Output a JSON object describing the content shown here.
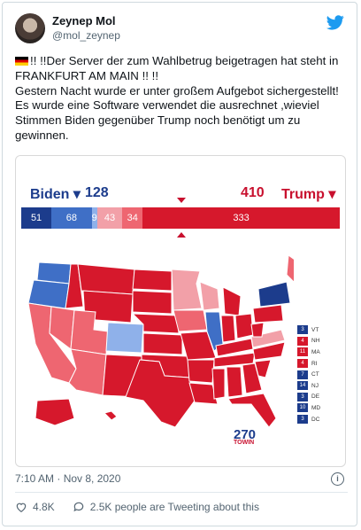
{
  "tweet": {
    "display_name": "Zeynep Mol",
    "handle": "@mol_zeynep",
    "line1": "!! !!Der Server der zum Wahlbetrug beigetragen hat steht in FRANKFURT AM MAIN !! !!",
    "line2": "Gestern Nacht wurde er unter großem Aufgebot sichergestellt! Es wurde eine Software verwendet die ausrechnet ,wieviel Stimmen Biden gegenüber Trump noch benötigt um zu gewinnen.",
    "timestamp": "7:10 AM · Nov 8, 2020",
    "likes": "4.8K",
    "tweeting_about": "2.5K people are Tweeting about this"
  },
  "map_card": {
    "biden_label": "Biden ▾",
    "biden_total": "128",
    "trump_total": "410",
    "trump_label": "Trump ▾",
    "bar_segments": [
      {
        "label": "51",
        "value": 51,
        "color": "#1c3c8c"
      },
      {
        "label": "68",
        "value": 68,
        "color": "#3f6fc6"
      },
      {
        "label": "9",
        "value": 9,
        "color": "#8fb1ea"
      },
      {
        "label": "43",
        "value": 43,
        "color": "#f2a0a8"
      },
      {
        "label": "34",
        "value": 34,
        "color": "#ee6671"
      },
      {
        "label": "333",
        "value": 333,
        "color": "#d6182c"
      }
    ],
    "northeast_states": [
      {
        "ev": "3",
        "abbr": "VT",
        "color": "#1c3c8c"
      },
      {
        "ev": "4",
        "abbr": "NH",
        "color": "#d6182c"
      },
      {
        "ev": "11",
        "abbr": "MA",
        "color": "#d6182c"
      },
      {
        "ev": "4",
        "abbr": "RI",
        "color": "#d6182c"
      },
      {
        "ev": "7",
        "abbr": "CT",
        "color": "#1c3c8c"
      },
      {
        "ev": "14",
        "abbr": "NJ",
        "color": "#1c3c8c"
      },
      {
        "ev": "3",
        "abbr": "DE",
        "color": "#1c3c8c"
      },
      {
        "ev": "10",
        "abbr": "MD",
        "color": "#1c3c8c"
      },
      {
        "ev": "3",
        "abbr": "DC",
        "color": "#1c3c8c"
      }
    ],
    "logo_number": "270",
    "logo_sub": "TOWIN"
  },
  "colors": {
    "safe_dem": "#1c3c8c",
    "likely_dem": "#3f6fc6",
    "lean_dem": "#8fb1ea",
    "lean_rep": "#f2a0a8",
    "likely_rep": "#ee6671",
    "safe_rep": "#d6182c",
    "twitter_blue": "#1d9bf0"
  },
  "icons": [
    "twitter-bird-icon",
    "info-icon",
    "heart-icon",
    "reply-bubble-icon",
    "germany-flag-icon"
  ]
}
